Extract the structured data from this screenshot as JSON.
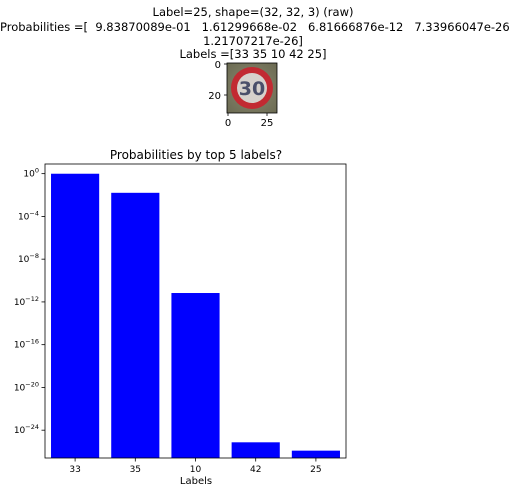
{
  "header": {
    "line1": "Label=25, shape=(32, 32, 3) (raw)",
    "line2": "Probabilities =[  9.83870089e-01   1.61299668e-02   6.81666876e-12   7.33966047e-26",
    "line3": "1.21707217e-26]",
    "line4": "Labels =[33 35 10 42 25]"
  },
  "thumbnail": {
    "sign_text": "30",
    "y_ticks": [
      "0",
      "20"
    ],
    "x_ticks": [
      "0",
      "25"
    ],
    "colors": {
      "background": "#6b6a52",
      "ring": "#c22a32",
      "face": "#d6d1cc",
      "digits": "#4a4f6a"
    }
  },
  "chart_data": {
    "type": "bar",
    "title": "Probabilities by top 5 labels?",
    "xlabel": "Labels",
    "ylabel": "",
    "yscale": "log",
    "categories": [
      "33",
      "35",
      "10",
      "42",
      "25"
    ],
    "values": [
      0.983870089,
      0.0161299668,
      6.81666876e-12,
      7.33966047e-26,
      1.21707217e-26
    ],
    "ylim": [
      2.5e-27,
      8
    ],
    "y_ticks": [
      {
        "value": 1,
        "base": "10",
        "exp": "0"
      },
      {
        "value": 0.0001,
        "base": "10",
        "exp": "−4"
      },
      {
        "value": 1e-08,
        "base": "10",
        "exp": "−8"
      },
      {
        "value": 1e-12,
        "base": "10",
        "exp": "−12"
      },
      {
        "value": 1e-16,
        "base": "10",
        "exp": "−16"
      },
      {
        "value": 1e-20,
        "base": "10",
        "exp": "−20"
      },
      {
        "value": 1e-24,
        "base": "10",
        "exp": "−24"
      }
    ],
    "bar_color": "#0000ff",
    "grid": false,
    "legend": "none"
  }
}
